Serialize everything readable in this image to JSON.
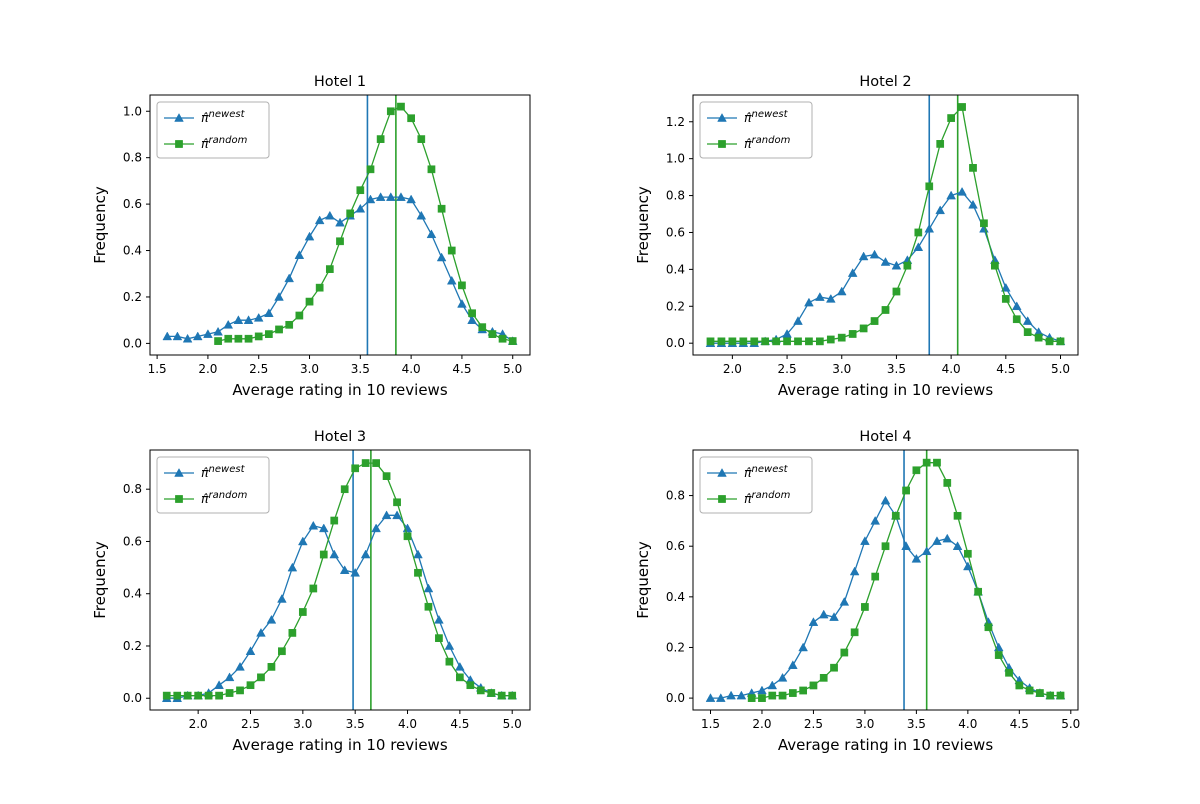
{
  "figure": {
    "background": "#ffffff",
    "text_color": "#000000"
  },
  "chart_data": [
    {
      "type": "line",
      "title": "Hotel 1",
      "xlabel": "Average rating in 10 reviews",
      "ylabel": "Frequency",
      "xlim": [
        1.43,
        5.17
      ],
      "ylim": [
        -0.05,
        1.07
      ],
      "xticks": [
        1.5,
        2.0,
        2.5,
        3.0,
        3.5,
        4.0,
        4.5,
        5.0
      ],
      "yticks": [
        0.0,
        0.2,
        0.4,
        0.6,
        0.8,
        1.0
      ],
      "grid": false,
      "legend_position": "upper-left",
      "series": [
        {
          "name": "π̂^newest",
          "color": "#1f77b4",
          "marker": "triangle",
          "x": [
            1.6,
            1.7,
            1.8,
            1.9,
            2.0,
            2.1,
            2.2,
            2.3,
            2.4,
            2.5,
            2.6,
            2.7,
            2.8,
            2.9,
            3.0,
            3.1,
            3.2,
            3.3,
            3.4,
            3.5,
            3.6,
            3.7,
            3.8,
            3.9,
            4.0,
            4.1,
            4.2,
            4.3,
            4.4,
            4.5,
            4.6,
            4.7,
            4.8,
            4.9,
            5.0
          ],
          "y": [
            0.03,
            0.03,
            0.02,
            0.03,
            0.04,
            0.05,
            0.08,
            0.1,
            0.1,
            0.11,
            0.13,
            0.2,
            0.28,
            0.38,
            0.46,
            0.53,
            0.55,
            0.52,
            0.55,
            0.58,
            0.62,
            0.63,
            0.63,
            0.63,
            0.62,
            0.55,
            0.47,
            0.37,
            0.27,
            0.17,
            0.1,
            0.06,
            0.05,
            0.04,
            0.01
          ]
        },
        {
          "name": "π̂^random",
          "color": "#2ca02c",
          "marker": "square",
          "x": [
            2.1,
            2.2,
            2.3,
            2.4,
            2.5,
            2.6,
            2.7,
            2.8,
            2.9,
            3.0,
            3.1,
            3.2,
            3.3,
            3.4,
            3.5,
            3.6,
            3.7,
            3.8,
            3.9,
            4.0,
            4.1,
            4.2,
            4.3,
            4.4,
            4.5,
            4.6,
            4.7,
            4.8,
            4.9,
            5.0
          ],
          "y": [
            0.01,
            0.02,
            0.02,
            0.02,
            0.03,
            0.04,
            0.06,
            0.08,
            0.12,
            0.18,
            0.24,
            0.32,
            0.44,
            0.56,
            0.66,
            0.75,
            0.88,
            1.0,
            1.02,
            0.97,
            0.88,
            0.75,
            0.58,
            0.4,
            0.25,
            0.13,
            0.07,
            0.04,
            0.02,
            0.01
          ]
        }
      ],
      "vlines": [
        {
          "x": 3.57,
          "color": "#1f77b4"
        },
        {
          "x": 3.85,
          "color": "#2ca02c"
        }
      ]
    },
    {
      "type": "line",
      "title": "Hotel 2",
      "xlabel": "Average rating in 10 reviews",
      "ylabel": "Frequency",
      "xlim": [
        1.64,
        5.16
      ],
      "ylim": [
        -0.064,
        1.345
      ],
      "xticks": [
        2.0,
        2.5,
        3.0,
        3.5,
        4.0,
        4.5,
        5.0
      ],
      "yticks": [
        0.0,
        0.2,
        0.4,
        0.6,
        0.8,
        1.0,
        1.2
      ],
      "grid": false,
      "legend_position": "upper-left",
      "series": [
        {
          "name": "π̂^newest",
          "color": "#1f77b4",
          "marker": "triangle",
          "x": [
            1.8,
            1.9,
            2.0,
            2.1,
            2.2,
            2.3,
            2.4,
            2.5,
            2.6,
            2.7,
            2.8,
            2.9,
            3.0,
            3.1,
            3.2,
            3.3,
            3.4,
            3.5,
            3.6,
            3.7,
            3.8,
            3.9,
            4.0,
            4.1,
            4.2,
            4.3,
            4.4,
            4.5,
            4.6,
            4.7,
            4.8,
            4.9,
            5.0
          ],
          "y": [
            0.0,
            0.0,
            0.0,
            0.0,
            0.0,
            0.01,
            0.02,
            0.05,
            0.12,
            0.22,
            0.25,
            0.24,
            0.28,
            0.38,
            0.47,
            0.48,
            0.44,
            0.42,
            0.45,
            0.52,
            0.62,
            0.72,
            0.8,
            0.82,
            0.75,
            0.62,
            0.45,
            0.3,
            0.2,
            0.12,
            0.06,
            0.03,
            0.01
          ]
        },
        {
          "name": "π̂^random",
          "color": "#2ca02c",
          "marker": "square",
          "x": [
            1.8,
            1.9,
            2.0,
            2.1,
            2.2,
            2.3,
            2.4,
            2.5,
            2.6,
            2.7,
            2.8,
            2.9,
            3.0,
            3.1,
            3.2,
            3.3,
            3.4,
            3.5,
            3.6,
            3.7,
            3.8,
            3.9,
            4.0,
            4.1,
            4.2,
            4.3,
            4.4,
            4.5,
            4.6,
            4.7,
            4.8,
            4.9,
            5.0
          ],
          "y": [
            0.01,
            0.01,
            0.01,
            0.01,
            0.01,
            0.01,
            0.01,
            0.01,
            0.01,
            0.01,
            0.01,
            0.02,
            0.03,
            0.05,
            0.08,
            0.12,
            0.18,
            0.28,
            0.42,
            0.6,
            0.85,
            1.08,
            1.22,
            1.28,
            0.95,
            0.65,
            0.42,
            0.24,
            0.13,
            0.06,
            0.03,
            0.01,
            0.01
          ]
        }
      ],
      "vlines": [
        {
          "x": 3.8,
          "color": "#1f77b4"
        },
        {
          "x": 4.06,
          "color": "#2ca02c"
        }
      ]
    },
    {
      "type": "line",
      "title": "Hotel 3",
      "xlabel": "Average rating in 10 reviews",
      "ylabel": "Frequency",
      "xlim": [
        1.54,
        5.17
      ],
      "ylim": [
        -0.045,
        0.95
      ],
      "xticks": [
        2.0,
        2.5,
        3.0,
        3.5,
        4.0,
        4.5,
        5.0
      ],
      "yticks": [
        0.0,
        0.2,
        0.4,
        0.6,
        0.8
      ],
      "grid": false,
      "legend_position": "upper-left",
      "series": [
        {
          "name": "π̂^newest",
          "color": "#1f77b4",
          "marker": "triangle",
          "x": [
            1.7,
            1.8,
            1.9,
            2.0,
            2.1,
            2.2,
            2.3,
            2.4,
            2.5,
            2.6,
            2.7,
            2.8,
            2.9,
            3.0,
            3.1,
            3.2,
            3.3,
            3.4,
            3.5,
            3.6,
            3.7,
            3.8,
            3.9,
            4.0,
            4.1,
            4.2,
            4.3,
            4.4,
            4.5,
            4.6,
            4.7,
            4.8,
            4.9,
            5.0
          ],
          "y": [
            0.0,
            0.0,
            0.01,
            0.01,
            0.02,
            0.05,
            0.08,
            0.12,
            0.18,
            0.25,
            0.3,
            0.38,
            0.5,
            0.6,
            0.66,
            0.65,
            0.55,
            0.49,
            0.48,
            0.55,
            0.65,
            0.7,
            0.7,
            0.65,
            0.55,
            0.42,
            0.3,
            0.2,
            0.12,
            0.07,
            0.04,
            0.02,
            0.01,
            0.01
          ]
        },
        {
          "name": "π̂^random",
          "color": "#2ca02c",
          "marker": "square",
          "x": [
            1.7,
            1.8,
            1.9,
            2.0,
            2.1,
            2.2,
            2.3,
            2.4,
            2.5,
            2.6,
            2.7,
            2.8,
            2.9,
            3.0,
            3.1,
            3.2,
            3.3,
            3.4,
            3.5,
            3.6,
            3.7,
            3.8,
            3.9,
            4.0,
            4.1,
            4.2,
            4.3,
            4.4,
            4.5,
            4.6,
            4.7,
            4.8,
            4.9,
            5.0
          ],
          "y": [
            0.01,
            0.01,
            0.01,
            0.01,
            0.01,
            0.01,
            0.02,
            0.03,
            0.05,
            0.08,
            0.12,
            0.18,
            0.25,
            0.33,
            0.42,
            0.55,
            0.68,
            0.8,
            0.88,
            0.9,
            0.9,
            0.85,
            0.75,
            0.62,
            0.48,
            0.35,
            0.23,
            0.14,
            0.08,
            0.05,
            0.03,
            0.02,
            0.01,
            0.01
          ]
        }
      ],
      "vlines": [
        {
          "x": 3.48,
          "color": "#1f77b4"
        },
        {
          "x": 3.65,
          "color": "#2ca02c"
        }
      ]
    },
    {
      "type": "line",
      "title": "Hotel 4",
      "xlabel": "Average rating in 10 reviews",
      "ylabel": "Frequency",
      "xlim": [
        1.33,
        5.07
      ],
      "ylim": [
        -0.047,
        0.98
      ],
      "xticks": [
        1.5,
        2.0,
        2.5,
        3.0,
        3.5,
        4.0,
        4.5,
        5.0
      ],
      "yticks": [
        0.0,
        0.2,
        0.4,
        0.6,
        0.8
      ],
      "grid": false,
      "legend_position": "upper-left",
      "series": [
        {
          "name": "π̂^newest",
          "color": "#1f77b4",
          "marker": "triangle",
          "x": [
            1.5,
            1.6,
            1.7,
            1.8,
            1.9,
            2.0,
            2.1,
            2.2,
            2.3,
            2.4,
            2.5,
            2.6,
            2.7,
            2.8,
            2.9,
            3.0,
            3.1,
            3.2,
            3.3,
            3.4,
            3.5,
            3.6,
            3.7,
            3.8,
            3.9,
            4.0,
            4.1,
            4.2,
            4.3,
            4.4,
            4.5,
            4.6,
            4.7,
            4.8,
            4.9
          ],
          "y": [
            0.0,
            0.0,
            0.01,
            0.01,
            0.02,
            0.03,
            0.05,
            0.08,
            0.13,
            0.2,
            0.3,
            0.33,
            0.32,
            0.38,
            0.5,
            0.62,
            0.7,
            0.78,
            0.72,
            0.6,
            0.55,
            0.58,
            0.62,
            0.63,
            0.6,
            0.52,
            0.42,
            0.3,
            0.2,
            0.12,
            0.07,
            0.04,
            0.02,
            0.01,
            0.01
          ]
        },
        {
          "name": "π̂^random",
          "color": "#2ca02c",
          "marker": "square",
          "x": [
            1.9,
            2.0,
            2.1,
            2.2,
            2.3,
            2.4,
            2.5,
            2.6,
            2.7,
            2.8,
            2.9,
            3.0,
            3.1,
            3.2,
            3.3,
            3.4,
            3.5,
            3.6,
            3.7,
            3.8,
            3.9,
            4.0,
            4.1,
            4.2,
            4.3,
            4.4,
            4.5,
            4.6,
            4.7,
            4.8,
            4.9
          ],
          "y": [
            0.0,
            0.0,
            0.01,
            0.01,
            0.02,
            0.03,
            0.05,
            0.08,
            0.12,
            0.18,
            0.26,
            0.36,
            0.48,
            0.6,
            0.72,
            0.82,
            0.9,
            0.93,
            0.93,
            0.85,
            0.72,
            0.57,
            0.42,
            0.28,
            0.17,
            0.1,
            0.05,
            0.03,
            0.02,
            0.01,
            0.01
          ]
        }
      ],
      "vlines": [
        {
          "x": 3.38,
          "color": "#1f77b4"
        },
        {
          "x": 3.6,
          "color": "#2ca02c"
        }
      ]
    }
  ]
}
